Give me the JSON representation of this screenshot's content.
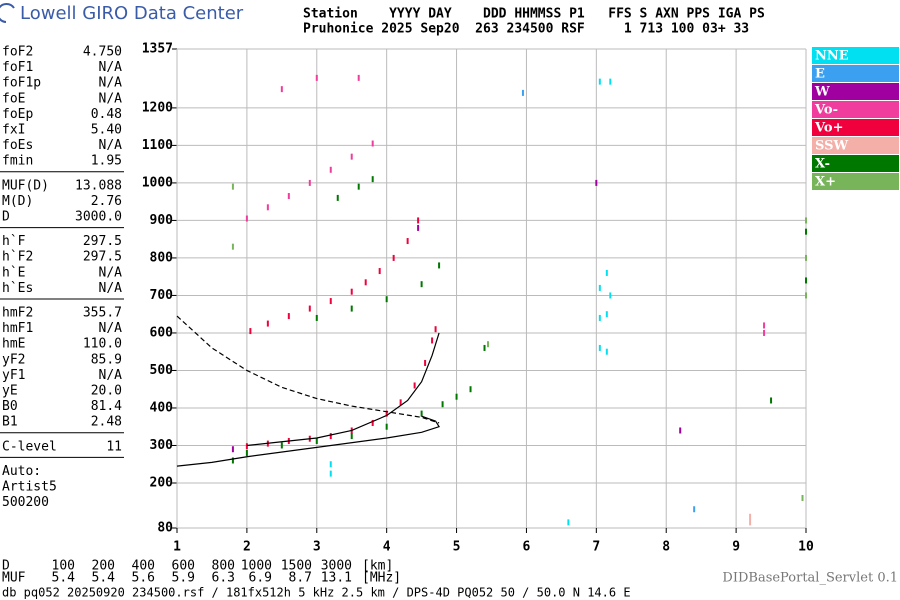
{
  "header": {
    "brand": "Lowell GIRO Data Center",
    "station_line_1": "Station    YYYY DAY    DDD HHMMSS P1   FFS S AXN PPS IGA PS",
    "station_line_2": "Pruhonice 2025 Sep20  263 234500 RSF     1 713 100 03+ 33"
  },
  "parameters": [
    [
      [
        "foF2",
        "4.750"
      ],
      [
        "foF1",
        "N/A"
      ],
      [
        "foF1p",
        "N/A"
      ],
      [
        "foE",
        "N/A"
      ],
      [
        "foEp",
        "0.48"
      ],
      [
        "fxI",
        "5.40"
      ],
      [
        "foEs",
        "N/A"
      ],
      [
        "fmin",
        "1.95"
      ]
    ],
    [
      [
        "MUF(D)",
        "13.088"
      ],
      [
        "M(D)",
        "2.76"
      ],
      [
        "D",
        "3000.0"
      ]
    ],
    [
      [
        "h`F",
        "297.5"
      ],
      [
        "h`F2",
        "297.5"
      ],
      [
        "h`E",
        "N/A"
      ],
      [
        "h`Es",
        "N/A"
      ]
    ],
    [
      [
        "hmF2",
        "355.7"
      ],
      [
        "hmF1",
        "N/A"
      ],
      [
        "hmE",
        "110.0"
      ],
      [
        "yF2",
        "85.9"
      ],
      [
        "yF1",
        "N/A"
      ],
      [
        "yE",
        "20.0"
      ],
      [
        "B0",
        "81.4"
      ],
      [
        "B1",
        "2.48"
      ]
    ],
    [
      [
        "C-level",
        "11"
      ]
    ]
  ],
  "autoscaling": [
    "Auto:",
    "Artist5",
    "500200"
  ],
  "muf_table": {
    "d_label": "D",
    "d_values": [
      100,
      200,
      400,
      600,
      800,
      1000,
      1500,
      3000
    ],
    "d_unit": "[km]",
    "muf_label": "MUF",
    "muf_values": [
      5.4,
      5.4,
      5.6,
      5.9,
      6.3,
      6.9,
      8.7,
      13.1
    ],
    "muf_unit": "[MHz]"
  },
  "footer": {
    "left": "db pq052 20250920 234500.rsf / 181fx512h 5 kHz 2.5 km / DPS-4D PQ052 50 / 50.0 N 14.6 E",
    "right": "DIDBasePortal_Servlet 0.1"
  },
  "chart_data": {
    "type": "scatter",
    "xlim": [
      1,
      10
    ],
    "xticks": [
      1,
      2,
      3,
      4,
      5,
      6,
      7,
      8,
      9,
      10
    ],
    "ylim": [
      80,
      1357
    ],
    "yticks": [
      80,
      200,
      300,
      400,
      500,
      600,
      700,
      800,
      900,
      1000,
      1100,
      1200,
      1357
    ],
    "grid": true,
    "series": [
      {
        "name": "NNE",
        "color": "#00e0f0",
        "x": [
          7.05,
          7.05,
          7.05,
          7.15,
          7.15,
          7.15,
          7.2,
          7.05,
          7.2,
          3.2,
          3.2,
          6.6
        ],
        "y": [
          560,
          640,
          720,
          550,
          650,
          760,
          700,
          1270,
          1270,
          250,
          225,
          95
        ]
      },
      {
        "name": "E",
        "color": "#3ca0f0",
        "x": [
          5.95,
          8.4
        ],
        "y": [
          1240,
          130
        ]
      },
      {
        "name": "W",
        "color": "#a000a0",
        "x": [
          7.0,
          8.2,
          4.45,
          1.8
        ],
        "y": [
          1000,
          340,
          880,
          290
        ]
      },
      {
        "name": "Vo-",
        "color": "#f03c9c",
        "x": [
          2.0,
          2.3,
          2.6,
          2.9,
          3.2,
          3.5,
          3.8,
          2.5,
          3.0,
          9.4,
          9.4,
          3.6
        ],
        "y": [
          905,
          935,
          965,
          1000,
          1035,
          1070,
          1105,
          1250,
          1280,
          620,
          600,
          1280
        ]
      },
      {
        "name": "Vo+",
        "color": "#f0003c",
        "x": [
          2.0,
          2.3,
          2.6,
          2.9,
          3.2,
          3.5,
          3.8,
          4.0,
          4.2,
          4.4,
          4.55,
          4.65,
          4.7,
          2.05,
          2.3,
          2.6,
          2.9,
          3.2,
          3.5,
          3.7,
          3.9,
          4.1,
          4.3,
          4.45
        ],
        "y": [
          298,
          305,
          312,
          318,
          325,
          340,
          360,
          385,
          415,
          460,
          520,
          580,
          610,
          605,
          625,
          645,
          665,
          685,
          710,
          735,
          765,
          800,
          845,
          900
        ]
      },
      {
        "name": "SSW",
        "color": "#f4b0a8",
        "x": [
          9.2,
          9.2
        ],
        "y": [
          95,
          110
        ]
      },
      {
        "name": "X-",
        "color": "#007800",
        "x": [
          1.8,
          2.0,
          2.5,
          3.0,
          3.5,
          4.0,
          4.5,
          4.8,
          5.0,
          5.2,
          5.4,
          3.0,
          3.5,
          4.0,
          4.5,
          4.75,
          3.3,
          3.6,
          3.8,
          9.5,
          10,
          10
        ],
        "y": [
          260,
          280,
          300,
          312,
          325,
          350,
          385,
          410,
          430,
          450,
          560,
          640,
          665,
          690,
          730,
          780,
          960,
          990,
          1010,
          420,
          870,
          740
        ]
      },
      {
        "name": "X+",
        "color": "#78b45a",
        "x": [
          1.8,
          5.45,
          10,
          10,
          10,
          9.95,
          1.8
        ],
        "y": [
          830,
          570,
          900,
          800,
          700,
          160,
          990
        ]
      }
    ],
    "curves": [
      {
        "style": "solid",
        "x": [
          2.0,
          2.5,
          3.0,
          3.5,
          4.0,
          4.3,
          4.5,
          4.65,
          4.75
        ],
        "y": [
          300,
          310,
          320,
          340,
          380,
          420,
          470,
          540,
          600
        ]
      },
      {
        "style": "solid",
        "x": [
          1.0,
          1.5,
          2.0,
          3.0,
          4.0,
          4.5,
          4.75,
          4.7,
          4.5
        ],
        "y": [
          245,
          255,
          270,
          295,
          320,
          335,
          350,
          365,
          378
        ]
      },
      {
        "style": "dashed",
        "x": [
          1.0,
          1.5,
          2.0,
          2.5,
          3.0,
          3.5,
          4.0,
          4.5,
          4.75
        ],
        "y": [
          645,
          560,
          500,
          455,
          425,
          405,
          390,
          375,
          360
        ]
      }
    ]
  }
}
